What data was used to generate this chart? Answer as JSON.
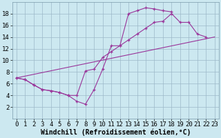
{
  "xlabel": "Windchill (Refroidissement éolien,°C)",
  "bg_color": "#cce8f0",
  "line_color": "#993399",
  "xlim": [
    -0.5,
    23.5
  ],
  "ylim": [
    0,
    20
  ],
  "xtick_labels": [
    "0",
    "1",
    "2",
    "3",
    "4",
    "5",
    "6",
    "7",
    "8",
    "9",
    "10",
    "11",
    "12",
    "13",
    "14",
    "15",
    "16",
    "17",
    "18",
    "19",
    "20",
    "21",
    "22",
    "23"
  ],
  "yticks": [
    2,
    4,
    6,
    8,
    10,
    12,
    14,
    16,
    18
  ],
  "curve1_x": [
    0,
    1,
    2,
    3,
    4,
    5,
    6,
    7,
    8,
    9,
    10,
    11,
    12,
    13,
    14,
    15,
    16,
    17,
    18
  ],
  "curve1_y": [
    7.0,
    6.7,
    5.8,
    5.0,
    4.8,
    4.5,
    4.0,
    3.0,
    2.5,
    5.0,
    8.5,
    12.5,
    12.5,
    18.0,
    18.5,
    19.0,
    18.8,
    18.5,
    18.3
  ],
  "curve2_x": [
    0,
    1,
    2,
    3,
    4,
    5,
    6,
    7,
    8,
    9,
    10,
    11,
    12,
    13,
    14,
    15,
    16,
    17,
    18,
    19,
    20,
    21,
    22
  ],
  "curve2_y": [
    7.0,
    6.7,
    5.8,
    5.0,
    4.8,
    4.5,
    4.0,
    4.0,
    8.2,
    8.5,
    10.5,
    11.5,
    12.5,
    13.5,
    14.5,
    15.5,
    16.5,
    16.7,
    18.0,
    16.5,
    16.5,
    14.5,
    14.0
  ],
  "curve3_x": [
    0,
    23
  ],
  "curve3_y": [
    7.0,
    14.0
  ],
  "font_size": 6.5,
  "label_font_size": 7.0
}
